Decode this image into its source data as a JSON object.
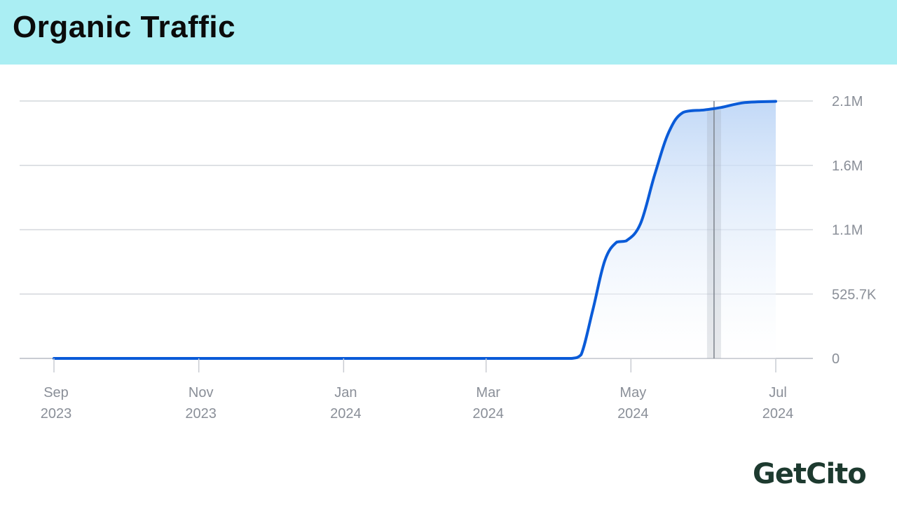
{
  "header": {
    "title": "Organic Traffic"
  },
  "brand": {
    "logo_text": "GetCito"
  },
  "colors": {
    "header_bg": "#aaeef3",
    "line": "#0a5bd8",
    "area_top": "#bcd5f6",
    "grid": "#d4d7dc",
    "tick_text": "#8a8f98",
    "logo": "#1d3a2f",
    "logo_accent": "#4bc04b"
  },
  "chart_data": {
    "type": "area",
    "title": "Organic Traffic",
    "xlabel": "",
    "ylabel": "",
    "x_ticks": [
      {
        "line1": "Sep",
        "line2": "2023"
      },
      {
        "line1": "Nov",
        "line2": "2023"
      },
      {
        "line1": "Jan",
        "line2": "2024"
      },
      {
        "line1": "Mar",
        "line2": "2024"
      },
      {
        "line1": "May",
        "line2": "2024"
      },
      {
        "line1": "Jul",
        "line2": "2024"
      }
    ],
    "y_ticks": [
      "0",
      "525.7K",
      "1.1M",
      "1.6M",
      "2.1M"
    ],
    "y_tick_values": [
      0,
      525700,
      1051400,
      1577100,
      2102800
    ],
    "ylim": [
      0,
      2102800
    ],
    "xlim": [
      "2023-09-01",
      "2024-07-01"
    ],
    "grid": true,
    "axis_side": "right",
    "highlight_date": "2024-06-05",
    "series": [
      {
        "values": [
          {
            "x": "2023-09-01",
            "y": 0
          },
          {
            "x": "2023-10-01",
            "y": 0
          },
          {
            "x": "2023-11-01",
            "y": 0
          },
          {
            "x": "2023-12-01",
            "y": 0
          },
          {
            "x": "2024-01-01",
            "y": 0
          },
          {
            "x": "2024-02-01",
            "y": 0
          },
          {
            "x": "2024-03-01",
            "y": 0
          },
          {
            "x": "2024-04-01",
            "y": 0
          },
          {
            "x": "2024-04-06",
            "y": 0
          },
          {
            "x": "2024-04-10",
            "y": 30000
          },
          {
            "x": "2024-04-15",
            "y": 400000
          },
          {
            "x": "2024-04-20",
            "y": 800000
          },
          {
            "x": "2024-04-25",
            "y": 950000
          },
          {
            "x": "2024-04-29",
            "y": 960000
          },
          {
            "x": "2024-05-05",
            "y": 1100000
          },
          {
            "x": "2024-05-11",
            "y": 1500000
          },
          {
            "x": "2024-05-17",
            "y": 1850000
          },
          {
            "x": "2024-05-23",
            "y": 2010000
          },
          {
            "x": "2024-06-01",
            "y": 2030000
          },
          {
            "x": "2024-06-08",
            "y": 2050000
          },
          {
            "x": "2024-06-18",
            "y": 2090000
          },
          {
            "x": "2024-07-01",
            "y": 2100000
          }
        ]
      }
    ]
  }
}
